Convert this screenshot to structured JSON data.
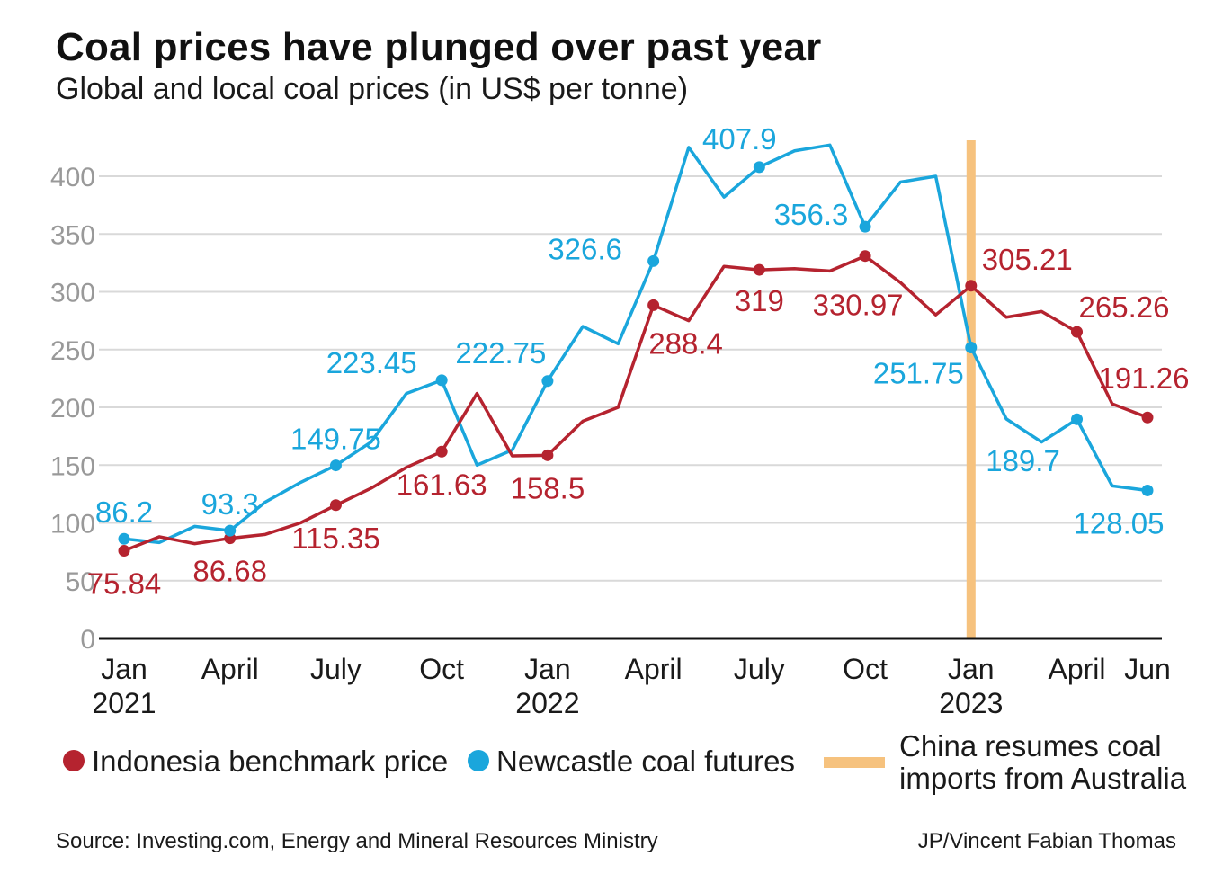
{
  "title": "Coal prices have plunged over past year",
  "subtitle": "Global and local coal prices (in US$ per tonne)",
  "colors": {
    "indonesia": "#b5232f",
    "newcastle": "#1aa6dc",
    "event": "#f6c27e",
    "grid": "#d9d9d9",
    "axis": "#111111",
    "tick": "#999999"
  },
  "chart_data": {
    "type": "line",
    "title": "Coal prices have plunged over past year",
    "ylabel": "US$ per tonne",
    "ylim": [
      0,
      400
    ],
    "yticks": [
      0,
      50,
      100,
      150,
      200,
      250,
      300,
      350,
      400
    ],
    "xlim": [
      0,
      29
    ],
    "x_ticks": [
      {
        "x": 0,
        "line1": "Jan",
        "line2": "2021"
      },
      {
        "x": 3,
        "line1": "April",
        "line2": ""
      },
      {
        "x": 6,
        "line1": "July",
        "line2": ""
      },
      {
        "x": 9,
        "line1": "Oct",
        "line2": ""
      },
      {
        "x": 12,
        "line1": "Jan",
        "line2": "2022"
      },
      {
        "x": 15,
        "line1": "April",
        "line2": ""
      },
      {
        "x": 18,
        "line1": "July",
        "line2": ""
      },
      {
        "x": 21,
        "line1": "Oct",
        "line2": ""
      },
      {
        "x": 24,
        "line1": "Jan",
        "line2": "2023"
      },
      {
        "x": 27,
        "line1": "April",
        "line2": ""
      },
      {
        "x": 29,
        "line1": "Jun",
        "line2": ""
      }
    ],
    "event": {
      "x": 24,
      "label": "China resumes coal imports from Australia"
    },
    "series": [
      {
        "name": "Indonesia benchmark price",
        "color": "#b5232f",
        "values": [
          75.84,
          88,
          82,
          86.68,
          90,
          100,
          115.35,
          130,
          148,
          161.63,
          212,
          158,
          158.5,
          188,
          200,
          288.4,
          275,
          322,
          319,
          320,
          318,
          330.97,
          308,
          280,
          305.21,
          278,
          283,
          265.26,
          203,
          191.26
        ],
        "markers": [
          {
            "x": 0,
            "label": "75.84",
            "pos": "below"
          },
          {
            "x": 3,
            "label": "86.68",
            "pos": "below"
          },
          {
            "x": 6,
            "label": "115.35",
            "pos": "below"
          },
          {
            "x": 9,
            "label": "161.63",
            "pos": "below"
          },
          {
            "x": 12,
            "label": "158.5",
            "pos": "below"
          },
          {
            "x": 15,
            "label": "288.4",
            "pos": "below"
          },
          {
            "x": 18,
            "label": "319",
            "pos": "below"
          },
          {
            "x": 21,
            "label": "330.97",
            "pos": "below"
          },
          {
            "x": 24,
            "label": "305.21",
            "pos": "above-right"
          },
          {
            "x": 27,
            "label": "265.26",
            "pos": "right"
          },
          {
            "x": 29,
            "label": "191.26",
            "pos": "above"
          }
        ]
      },
      {
        "name": "Newcastle coal futures",
        "color": "#1aa6dc",
        "values": [
          86.2,
          83,
          97,
          93.3,
          118,
          135,
          149.75,
          170,
          212,
          223.45,
          150,
          163,
          222.75,
          270,
          255,
          326.6,
          425,
          382,
          407.9,
          422,
          427,
          356.3,
          395,
          400,
          251.75,
          190,
          170,
          189.7,
          132,
          128.05
        ],
        "markers": [
          {
            "x": 0,
            "label": "86.2",
            "pos": "above"
          },
          {
            "x": 3,
            "label": "93.3",
            "pos": "above"
          },
          {
            "x": 6,
            "label": "149.75",
            "pos": "above"
          },
          {
            "x": 9,
            "label": "223.45",
            "pos": "above"
          },
          {
            "x": 12,
            "label": "222.75",
            "pos": "above"
          },
          {
            "x": 15,
            "label": "326.6",
            "pos": "above"
          },
          {
            "x": 18,
            "label": "407.9",
            "pos": "above"
          },
          {
            "x": 21,
            "label": "356.3",
            "pos": "above"
          },
          {
            "x": 24,
            "label": "251.75",
            "pos": "below-left"
          },
          {
            "x": 27,
            "label": "189.7",
            "pos": "below"
          },
          {
            "x": 29,
            "label": "128.05",
            "pos": "below"
          }
        ]
      }
    ],
    "legend": [
      {
        "label": "Indonesia benchmark price",
        "color": "#b5232f",
        "kind": "dot"
      },
      {
        "label": "Newcastle coal futures",
        "color": "#1aa6dc",
        "kind": "dot"
      },
      {
        "label": "China resumes coal imports from Australia",
        "line1": "China resumes coal",
        "line2": "imports from Australia",
        "color": "#f6c27e",
        "kind": "bar"
      }
    ]
  },
  "footer": {
    "source": "Source: Investing.com, Energy and Mineral Resources Ministry",
    "credit": "JP/Vincent Fabian Thomas"
  }
}
